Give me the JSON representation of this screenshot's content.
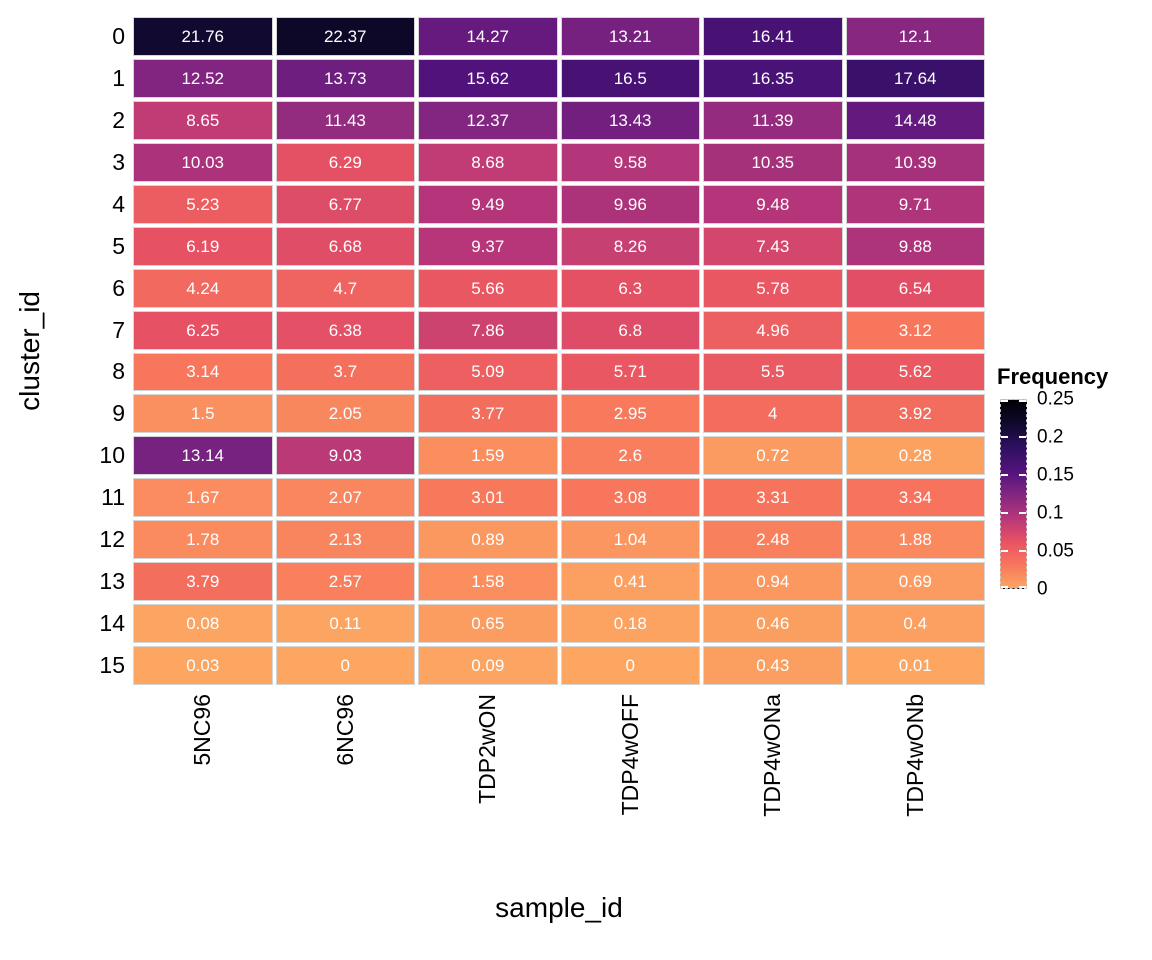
{
  "chart_data": {
    "type": "heatmap",
    "xlabel": "sample_id",
    "ylabel": "cluster_id",
    "x_categories": [
      "5NC96",
      "6NC96",
      "TDP2wON",
      "TDP4wOFF",
      "TDP4wONa",
      "TDP4wONb"
    ],
    "y_categories": [
      "0",
      "1",
      "2",
      "3",
      "4",
      "5",
      "6",
      "7",
      "8",
      "9",
      "10",
      "11",
      "12",
      "13",
      "14",
      "15"
    ],
    "values": [
      [
        21.76,
        22.37,
        14.27,
        13.21,
        16.41,
        12.1
      ],
      [
        12.52,
        13.73,
        15.62,
        16.5,
        16.35,
        17.64
      ],
      [
        8.65,
        11.43,
        12.37,
        13.43,
        11.39,
        14.48
      ],
      [
        10.03,
        6.29,
        8.68,
        9.58,
        10.35,
        10.39
      ],
      [
        5.23,
        6.77,
        9.49,
        9.96,
        9.48,
        9.71
      ],
      [
        6.19,
        6.68,
        9.37,
        8.26,
        7.43,
        9.88
      ],
      [
        4.24,
        4.7,
        5.66,
        6.3,
        5.78,
        6.54
      ],
      [
        6.25,
        6.38,
        7.86,
        6.8,
        4.96,
        3.12
      ],
      [
        3.14,
        3.7,
        5.09,
        5.71,
        5.5,
        5.62
      ],
      [
        1.5,
        2.05,
        3.77,
        2.95,
        4,
        3.92
      ],
      [
        13.14,
        9.03,
        1.59,
        2.6,
        0.72,
        0.28
      ],
      [
        1.67,
        2.07,
        3.01,
        3.08,
        3.31,
        3.34
      ],
      [
        1.78,
        2.13,
        0.89,
        1.04,
        2.48,
        1.88
      ],
      [
        3.79,
        2.57,
        1.58,
        0.41,
        0.94,
        0.69
      ],
      [
        0.08,
        0.11,
        0.65,
        0.18,
        0.46,
        0.4
      ],
      [
        0.03,
        0,
        0.09,
        0,
        0.43,
        0.01
      ]
    ],
    "legend": {
      "title": "Frequency",
      "tick_labels_top_to_bottom": [
        "0.25",
        "0.2",
        "0.15",
        "0.1",
        "0.05",
        "0"
      ],
      "range": [
        0,
        0.25
      ],
      "position": "right"
    },
    "colormap": {
      "name": "magma-reversed",
      "stops": [
        {
          "value": 0,
          "color": "#FCA662"
        },
        {
          "value": 3.125,
          "color": "#F8765C"
        },
        {
          "value": 6.25,
          "color": "#E65164"
        },
        {
          "value": 9.375,
          "color": "#B63679"
        },
        {
          "value": 12.5,
          "color": "#812581"
        },
        {
          "value": 15.625,
          "color": "#51127C"
        },
        {
          "value": 18.75,
          "color": "#2D1160"
        },
        {
          "value": 21.875,
          "color": "#10092D"
        },
        {
          "value": 25,
          "color": "#000004"
        }
      ]
    },
    "cell_text_color": "#FFFFFF",
    "background": "#FFFFFF",
    "grid": false
  }
}
